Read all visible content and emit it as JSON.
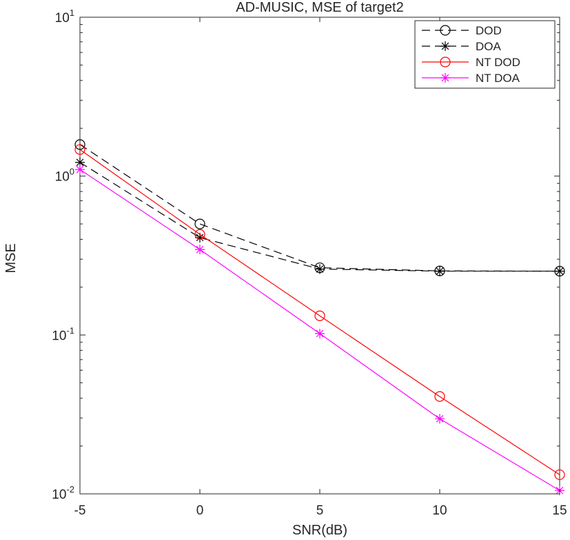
{
  "chart_data": {
    "type": "line",
    "title": "AD-MUSIC, MSE of target2",
    "xlabel": "SNR(dB)",
    "ylabel": "MSE",
    "xlim": [
      -5,
      15
    ],
    "ylim": [
      0.01,
      10
    ],
    "yscale": "log",
    "grid": false,
    "legend_position": "top-right",
    "x": [
      -5,
      0,
      5,
      10,
      15
    ],
    "xticks": [
      "-5",
      "0",
      "5",
      "10",
      "15"
    ],
    "yticks": [
      {
        "base": "10",
        "exp": "-2",
        "value": 0.01
      },
      {
        "base": "10",
        "exp": "-1",
        "value": 0.1
      },
      {
        "base": "10",
        "exp": "0",
        "value": 1
      },
      {
        "base": "10",
        "exp": "1",
        "value": 10
      }
    ],
    "series": [
      {
        "name": "DOD",
        "values": [
          1.58,
          0.5,
          0.265,
          0.253,
          0.252
        ],
        "color": "#000000",
        "marker": "circle",
        "line": "dashed"
      },
      {
        "name": "DOA",
        "values": [
          1.22,
          0.41,
          0.26,
          0.252,
          0.252
        ],
        "color": "#000000",
        "marker": "star",
        "line": "dashed"
      },
      {
        "name": "NT DOD",
        "values": [
          1.47,
          0.43,
          0.132,
          0.041,
          0.0132
        ],
        "color": "#ff0000",
        "marker": "circle",
        "line": "solid"
      },
      {
        "name": "NT DOA",
        "values": [
          1.1,
          0.345,
          0.102,
          0.0297,
          0.0105
        ],
        "color": "#ff00ff",
        "marker": "star",
        "line": "solid"
      }
    ]
  }
}
